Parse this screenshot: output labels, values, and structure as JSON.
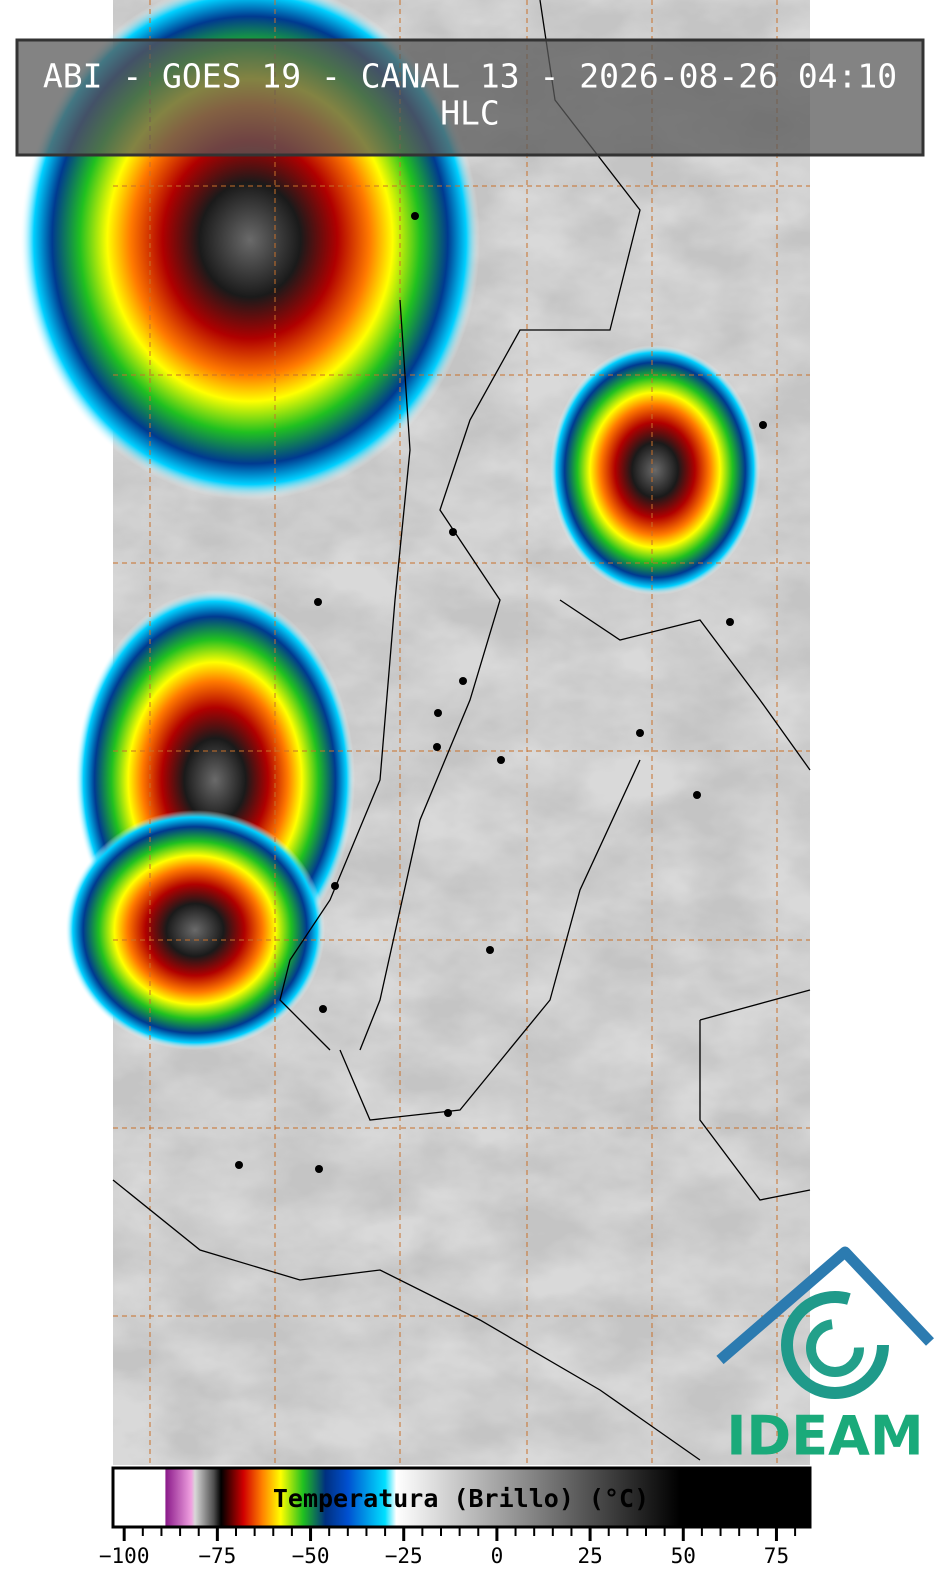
{
  "header": {
    "title": "ABI - GOES 19 - CANAL 13 - 2026-08-26 04:10",
    "subtitle": "HLC"
  },
  "chart_data": {
    "type": "colorbar",
    "xlabel": "Temperatura (Brillo) (°C)",
    "xlim": [
      -103,
      84
    ],
    "xticks": [
      {
        "value": -100,
        "label": "−100"
      },
      {
        "value": -75,
        "label": "−75"
      },
      {
        "value": -50,
        "label": "−50"
      },
      {
        "value": -25,
        "label": "−25"
      },
      0,
      25,
      50,
      75
    ],
    "xminorticks": [
      -95,
      -90,
      -85,
      -80,
      -70,
      -65,
      -60,
      -55,
      -45,
      -40,
      -35,
      -30,
      -20,
      -15,
      -10,
      -5,
      5,
      10,
      15,
      20,
      30,
      35,
      40,
      45,
      55,
      60,
      65,
      70,
      80
    ],
    "stops": [
      {
        "value": -103,
        "color": "#ffffff"
      },
      {
        "value": -89,
        "color": "#ffffff"
      },
      {
        "value": -88.9,
        "color": "#8a1a8a"
      },
      {
        "value": -82,
        "color": "#f0a0e0"
      },
      {
        "value": -81,
        "color": "#d8d8d8"
      },
      {
        "value": -76,
        "color": "#505050"
      },
      {
        "value": -74,
        "color": "#000000"
      },
      {
        "value": -68,
        "color": "#d00000"
      },
      {
        "value": -63,
        "color": "#ff8000"
      },
      {
        "value": -58,
        "color": "#ffff00"
      },
      {
        "value": -52,
        "color": "#20c020"
      },
      {
        "value": -46,
        "color": "#003080"
      },
      {
        "value": -40,
        "color": "#0050d0"
      },
      {
        "value": -30,
        "color": "#00e0ff"
      },
      {
        "value": -27,
        "color": "#ffffff"
      },
      {
        "value": 49,
        "color": "#000000"
      },
      {
        "value": 84,
        "color": "#000000"
      }
    ]
  },
  "logo": {
    "text": "IDEAM"
  }
}
